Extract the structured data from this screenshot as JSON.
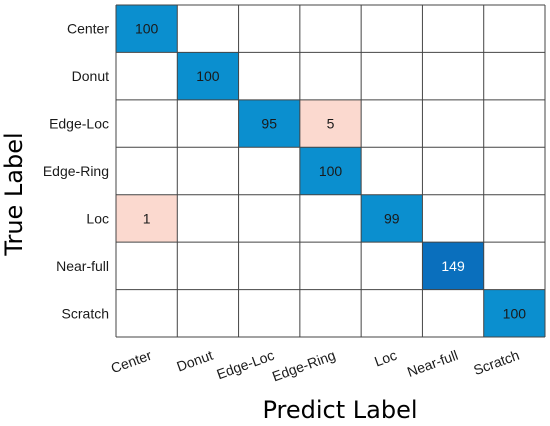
{
  "chart_data": {
    "type": "heatmap",
    "title": "",
    "xlabel": "Predict Label",
    "ylabel": "True Label",
    "row_labels": [
      "Center",
      "Donut",
      "Edge-Loc",
      "Edge-Ring",
      "Loc",
      "Near-full",
      "Scratch"
    ],
    "col_labels": [
      "Center",
      "Donut",
      "Edge-Loc",
      "Edge-Ring",
      "Loc",
      "Near-full",
      "Scratch"
    ],
    "values": [
      [
        100,
        null,
        null,
        null,
        null,
        null,
        null
      ],
      [
        null,
        100,
        null,
        null,
        null,
        null,
        null
      ],
      [
        null,
        null,
        95,
        5,
        null,
        null,
        null
      ],
      [
        null,
        null,
        null,
        100,
        null,
        null,
        null
      ],
      [
        1,
        null,
        null,
        null,
        99,
        null,
        null
      ],
      [
        null,
        null,
        null,
        null,
        null,
        149,
        null
      ],
      [
        null,
        null,
        null,
        null,
        null,
        null,
        100
      ]
    ],
    "colors": {
      "diagonal": "#0b8fcf",
      "diagonal_strong": "#0a6fbd",
      "off_diagonal": "#fbd9cf",
      "grid": "#444444",
      "text_light": "#ffffff",
      "text_dark": "#1a1a1a"
    },
    "grid": true
  }
}
